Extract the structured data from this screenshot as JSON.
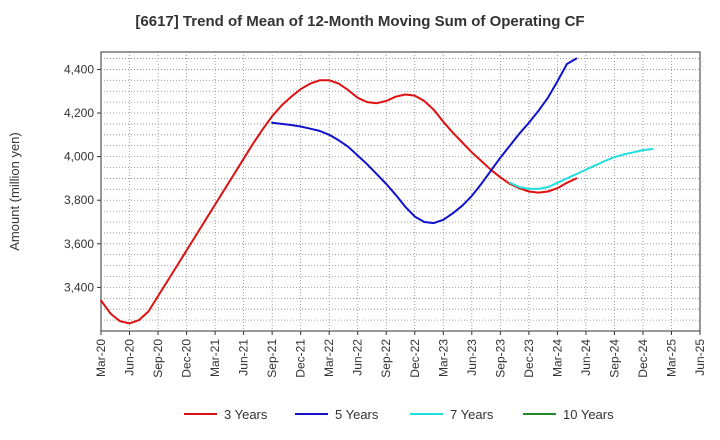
{
  "chart_data": {
    "type": "line",
    "title": "[6617]  Trend of Mean of 12-Month Moving Sum of Operating CF",
    "xlabel": "",
    "ylabel": "Amount (million yen)",
    "ylim": [
      3200,
      4480
    ],
    "yticks": [
      3400,
      3600,
      3800,
      4000,
      4200,
      4400
    ],
    "ytick_labels": [
      "3,400",
      "3,600",
      "3,800",
      "4,000",
      "4,200",
      "4,400"
    ],
    "x_categories": [
      "Mar-20",
      "Jun-20",
      "Sep-20",
      "Dec-20",
      "Mar-21",
      "Jun-21",
      "Sep-21",
      "Dec-21",
      "Mar-22",
      "Jun-22",
      "Sep-22",
      "Dec-22",
      "Mar-23",
      "Jun-23",
      "Sep-23",
      "Dec-23",
      "Mar-24",
      "Jun-24",
      "Sep-24",
      "Dec-24",
      "Mar-25",
      "Jun-25"
    ],
    "grid": true,
    "legend_position": "bottom",
    "series": [
      {
        "name": "3 Years",
        "color": "#dd1111",
        "start_index": 0,
        "values": [
          3340,
          3280,
          3245,
          3235,
          3250,
          3290,
          3360,
          3430,
          3500,
          3570,
          3640,
          3710,
          3780,
          3850,
          3920,
          3990,
          4060,
          4125,
          4185,
          4235,
          4275,
          4310,
          4335,
          4350,
          4350,
          4335,
          4305,
          4270,
          4250,
          4245,
          4255,
          4275,
          4285,
          4280,
          4255,
          4215,
          4160,
          4110,
          4065,
          4020,
          3980,
          3940,
          3905,
          3875,
          3855,
          3840,
          3835,
          3840,
          3855,
          3880,
          3900
        ]
      },
      {
        "name": "5 Years",
        "color": "#1111cc",
        "start_index": 18,
        "values": [
          4155,
          4150,
          4145,
          4138,
          4128,
          4118,
          4100,
          4075,
          4045,
          4005,
          3965,
          3920,
          3875,
          3825,
          3770,
          3725,
          3700,
          3695,
          3710,
          3740,
          3775,
          3820,
          3875,
          3935,
          3995,
          4050,
          4105,
          4155,
          4210,
          4270,
          4345,
          4425,
          4450
        ]
      },
      {
        "name": "7 Years",
        "color": "#22dddd",
        "start_index": 43,
        "values": [
          3880,
          3860,
          3852,
          3852,
          3860,
          3880,
          3900,
          3920,
          3940,
          3960,
          3980,
          3998,
          4010,
          4020,
          4030,
          4035
        ]
      },
      {
        "name": "10 Years",
        "color": "#228822",
        "start_index": 0,
        "values": []
      }
    ]
  }
}
